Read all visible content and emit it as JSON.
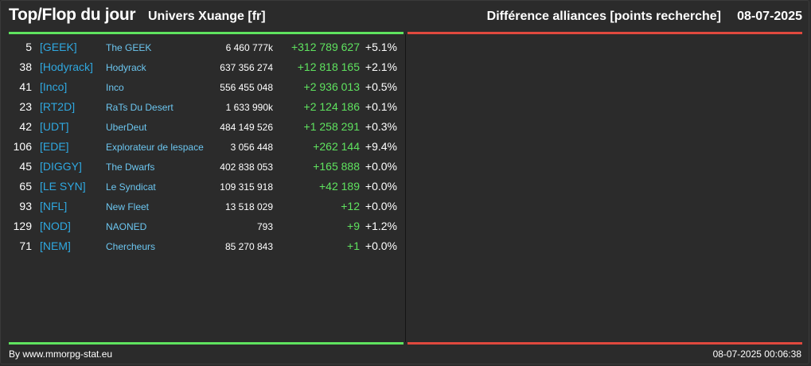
{
  "header": {
    "title": "Top/Flop du jour",
    "universe": "Univers Xuange [fr]",
    "subject": "Différence alliances [points recherche]",
    "date": "08-07-2025"
  },
  "colors": {
    "top_bar": "#5fe35f",
    "flop_bar": "#e0493e",
    "positive": "#5fe35f",
    "tag": "#2fa8e0",
    "name": "#6cc6f0",
    "background": "#2b2b2b"
  },
  "top_rows": [
    {
      "rank": "5",
      "tag": "[GEEK]",
      "name": "The GEEK",
      "points": "6 460 777k",
      "diff": "+312 789 627",
      "pct": "+5.1%"
    },
    {
      "rank": "38",
      "tag": "[Hodyrack]",
      "name": "Hodyrack",
      "points": "637 356 274",
      "diff": "+12 818 165",
      "pct": "+2.1%"
    },
    {
      "rank": "41",
      "tag": "[Inco]",
      "name": "Inco",
      "points": "556 455 048",
      "diff": "+2 936 013",
      "pct": "+0.5%"
    },
    {
      "rank": "23",
      "tag": "[RT2D]",
      "name": "RaTs Du Desert",
      "points": "1 633 990k",
      "diff": "+2 124 186",
      "pct": "+0.1%"
    },
    {
      "rank": "42",
      "tag": "[UDT]",
      "name": "UberDeut",
      "points": "484 149 526",
      "diff": "+1 258 291",
      "pct": "+0.3%"
    },
    {
      "rank": "106",
      "tag": "[EDE]",
      "name": "Explorateur de lespace",
      "points": "3 056 448",
      "diff": "+262 144",
      "pct": "+9.4%"
    },
    {
      "rank": "45",
      "tag": "[DIGGY]",
      "name": "The Dwarfs",
      "points": "402 838 053",
      "diff": "+165 888",
      "pct": "+0.0%"
    },
    {
      "rank": "65",
      "tag": "[LE SYN]",
      "name": "Le Syndicat",
      "points": "109 315 918",
      "diff": "+42 189",
      "pct": "+0.0%"
    },
    {
      "rank": "93",
      "tag": "[NFL]",
      "name": "New Fleet",
      "points": "13 518 029",
      "diff": "+12",
      "pct": "+0.0%"
    },
    {
      "rank": "129",
      "tag": "[NOD]",
      "name": "NAONED",
      "points": "793",
      "diff": "+9",
      "pct": "+1.2%"
    },
    {
      "rank": "71",
      "tag": "[NEM]",
      "name": "Chercheurs",
      "points": "85 270 843",
      "diff": "+1",
      "pct": "+0.0%"
    }
  ],
  "footer": {
    "source": "By www.mmorpg-stat.eu",
    "timestamp": "08-07-2025 00:06:38"
  }
}
